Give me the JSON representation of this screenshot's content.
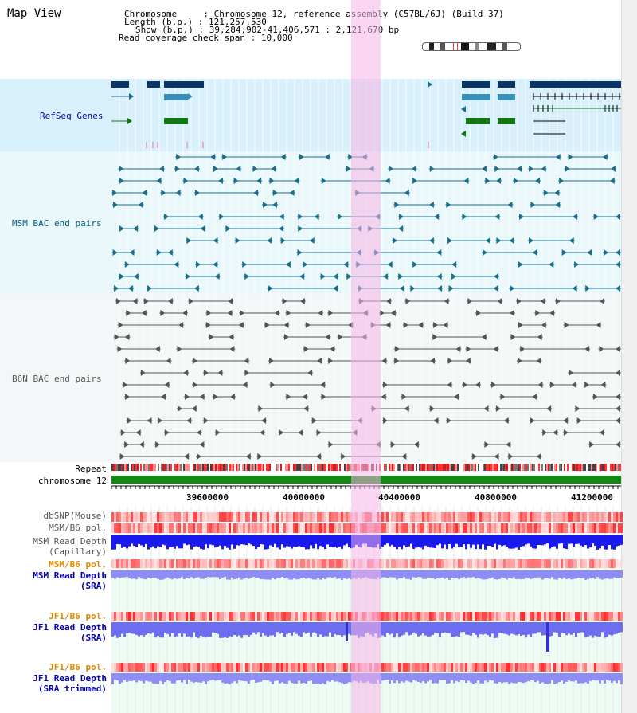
{
  "title": "Map View",
  "header": {
    "chromosome_label": "Chromosome",
    "chromosome_value": "Chromosome 12, reference assembly (C57BL/6J) (Build 37)",
    "length_label": "Length (b.p.)",
    "length_value": "121,257,530",
    "show_label": "Show (b.p.)",
    "show_value": "39,284,902-41,406,571 : 2,121,670 bp",
    "coverage_label": "Read coverage check span",
    "coverage_value": "10,000"
  },
  "tracks": {
    "refseq": "RefSeq Genes",
    "msm_bac": "MSM BAC end pairs",
    "b6n_bac": "B6N BAC end pairs",
    "repeat": "Repeat",
    "chromosome": "chromosome 12",
    "dbsnp": "dbSNP(Mouse)",
    "msm_b6_pol": "MSM/B6 pol.",
    "msm_read_depth_cap_1": "MSM Read Depth",
    "msm_read_depth_cap_2": "(Capillary)",
    "msm_b6_pol2": "MSM/B6 pol.",
    "msm_read_depth_sra_1": "MSM Read Depth",
    "msm_read_depth_sra_2": "(SRA)",
    "jf1_b6_pol": "JF1/B6 pol.",
    "jf1_read_depth_sra_1": "JF1 Read Depth",
    "jf1_read_depth_sra_2": "(SRA)",
    "jf1_b6_pol2": "JF1/B6 pol.",
    "jf1_read_depth_trim_1": "JF1 Read Depth",
    "jf1_read_depth_trim_2": "(SRA trimmed)"
  },
  "axis": {
    "ticks": [
      "39600000",
      "40000000",
      "40400000",
      "40800000",
      "41200000"
    ]
  },
  "colors": {
    "refseq_bg": "#d8f0fb",
    "msm_bg": "#eaf8fb",
    "b6n_bg": "#f4f7f8",
    "highlight": "#f6d4f0",
    "navy": "#0b3566",
    "teal": "#1a6e8a",
    "green": "#117711",
    "grey": "#555555",
    "orange": "#e08a00",
    "blue_label": "#0000aa",
    "msm_label": "#00587a"
  }
}
